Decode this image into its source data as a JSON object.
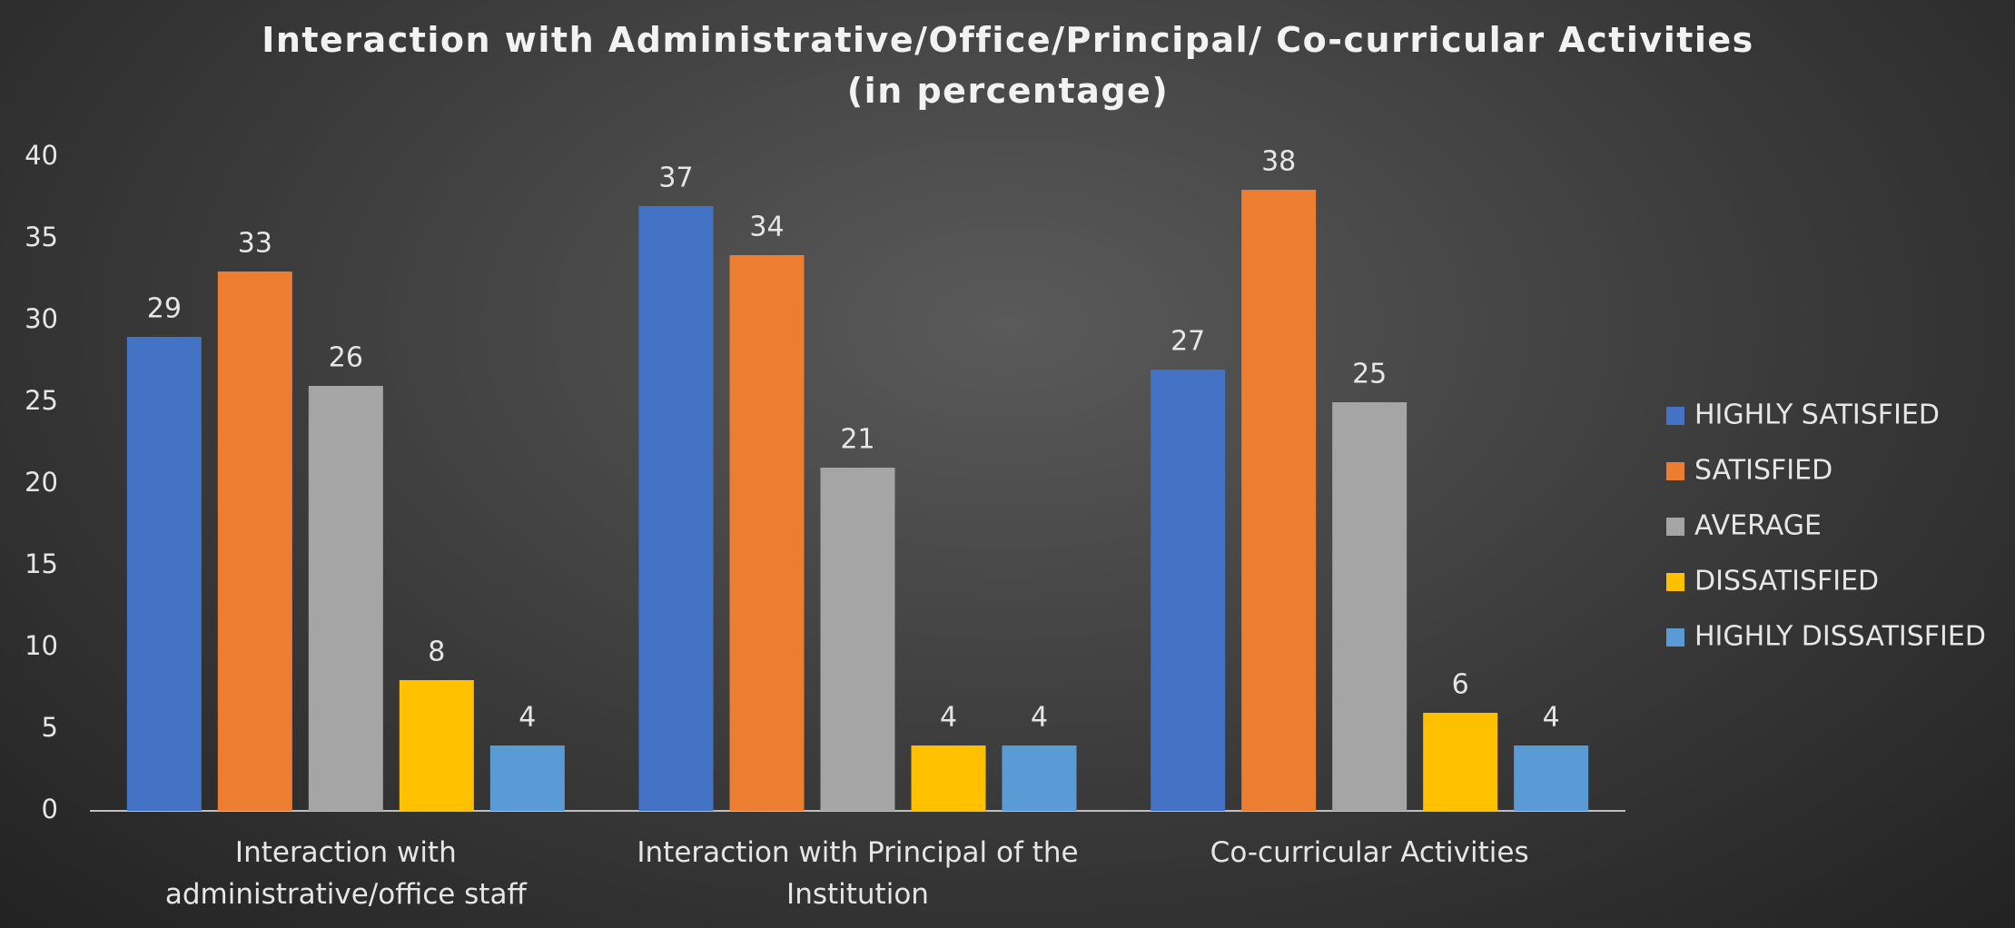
{
  "chart_data": {
    "type": "bar",
    "title": "Interaction with Administrative/Office/Principal/  Co-curricular Activities (in percentage)",
    "categories": [
      "Interaction with administrative/office staff",
      "Interaction with Principal of the Institution",
      "Co-curricular Activities"
    ],
    "series": [
      {
        "name": "HIGHLY SATISFIED",
        "color": "#4472c4",
        "values": [
          29,
          37,
          27
        ]
      },
      {
        "name": "SATISFIED",
        "color": "#ed7d31",
        "values": [
          33,
          34,
          38
        ]
      },
      {
        "name": "AVERAGE",
        "color": "#a5a5a5",
        "values": [
          26,
          21,
          25
        ]
      },
      {
        "name": "DISSATISFIED",
        "color": "#ffc000",
        "values": [
          8,
          4,
          6
        ]
      },
      {
        "name": "HIGHLY DISSATISFIED",
        "color": "#5b9bd5",
        "values": [
          4,
          4,
          4
        ]
      }
    ],
    "ylim": [
      0,
      40
    ],
    "yticks": [
      0,
      5,
      10,
      15,
      20,
      25,
      30,
      35,
      40
    ],
    "grid": false,
    "legend": "right"
  }
}
